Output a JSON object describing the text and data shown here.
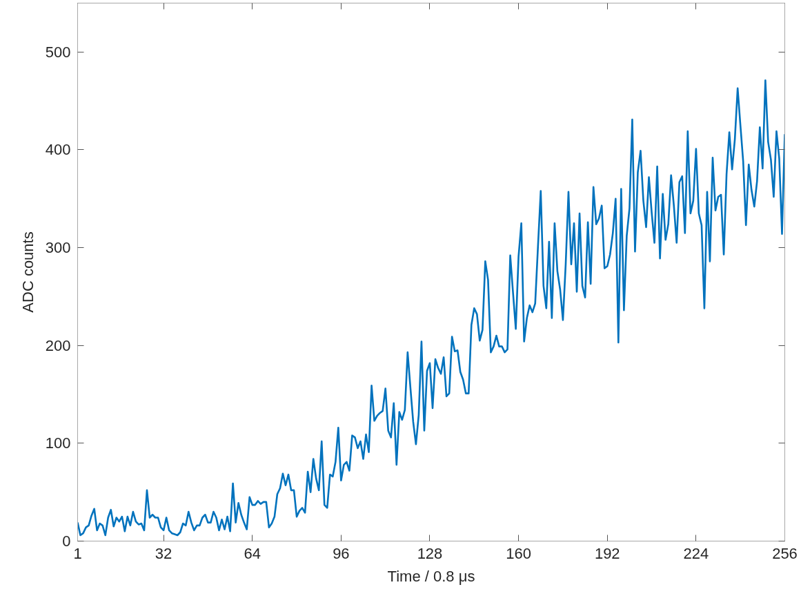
{
  "chart_data": {
    "type": "line",
    "xlabel": "Time / 0.8 μs",
    "ylabel": "ADC counts",
    "color": "#0072bd",
    "line_style": "solid",
    "grid": false,
    "xlim": [
      1,
      256
    ],
    "ylim": [
      0,
      550
    ],
    "xticks": [
      1,
      32,
      64,
      96,
      128,
      160,
      192,
      224,
      256
    ],
    "yticks": [
      0,
      100,
      200,
      300,
      400,
      500
    ],
    "x": [
      1,
      2,
      3,
      4,
      5,
      6,
      7,
      8,
      9,
      10,
      11,
      12,
      13,
      14,
      15,
      16,
      17,
      18,
      19,
      20,
      21,
      22,
      23,
      24,
      25,
      26,
      27,
      28,
      29,
      30,
      31,
      32,
      33,
      34,
      35,
      36,
      37,
      38,
      39,
      40,
      41,
      42,
      43,
      44,
      45,
      46,
      47,
      48,
      49,
      50,
      51,
      52,
      53,
      54,
      55,
      56,
      57,
      58,
      59,
      60,
      61,
      62,
      63,
      64,
      65,
      66,
      67,
      68,
      69,
      70,
      71,
      72,
      73,
      74,
      75,
      76,
      77,
      78,
      79,
      80,
      81,
      82,
      83,
      84,
      85,
      86,
      87,
      88,
      89,
      90,
      91,
      92,
      93,
      94,
      95,
      96,
      97,
      98,
      99,
      100,
      101,
      102,
      103,
      104,
      105,
      106,
      107,
      108,
      109,
      110,
      111,
      112,
      113,
      114,
      115,
      116,
      117,
      118,
      119,
      120,
      121,
      122,
      123,
      124,
      125,
      126,
      127,
      128,
      129,
      130,
      131,
      132,
      133,
      134,
      135,
      136,
      137,
      138,
      139,
      140,
      141,
      142,
      143,
      144,
      145,
      146,
      147,
      148,
      149,
      150,
      151,
      152,
      153,
      154,
      155,
      156,
      157,
      158,
      159,
      160,
      161,
      162,
      163,
      164,
      165,
      166,
      167,
      168,
      169,
      170,
      171,
      172,
      173,
      174,
      175,
      176,
      177,
      178,
      179,
      180,
      181,
      182,
      183,
      184,
      185,
      186,
      187,
      188,
      189,
      190,
      191,
      192,
      193,
      194,
      195,
      196,
      197,
      198,
      199,
      200,
      201,
      202,
      203,
      204,
      205,
      206,
      207,
      208,
      209,
      210,
      211,
      212,
      213,
      214,
      215,
      216,
      217,
      218,
      219,
      220,
      221,
      222,
      223,
      224,
      225,
      226,
      227,
      228,
      229,
      230,
      231,
      232,
      233,
      234,
      235,
      236,
      237,
      238,
      239,
      240,
      241,
      242,
      243,
      244,
      245,
      246,
      247,
      248,
      249,
      250,
      251,
      252,
      253,
      254,
      255,
      256
    ],
    "values": [
      19,
      6,
      8,
      14,
      16,
      26,
      33,
      11,
      18,
      16,
      6,
      24,
      32,
      15,
      24,
      20,
      25,
      10,
      25,
      16,
      30,
      20,
      17,
      18,
      11,
      52,
      24,
      27,
      24,
      24,
      14,
      11,
      24,
      11,
      8,
      7,
      6,
      9,
      18,
      16,
      30,
      19,
      11,
      16,
      16,
      24,
      27,
      19,
      19,
      30,
      24,
      11,
      22,
      12,
      25,
      10,
      59,
      19,
      39,
      27,
      19,
      12,
      45,
      37,
      37,
      41,
      38,
      40,
      40,
      14,
      18,
      25,
      48,
      54,
      69,
      57,
      68,
      52,
      52,
      25,
      31,
      34,
      29,
      71,
      50,
      84,
      64,
      52,
      102,
      37,
      34,
      68,
      66,
      81,
      116,
      62,
      78,
      81,
      72,
      108,
      106,
      95,
      102,
      84,
      109,
      91,
      159,
      123,
      128,
      131,
      133,
      156,
      113,
      106,
      141,
      78,
      132,
      124,
      134,
      193,
      157,
      122,
      99,
      129,
      204,
      113,
      174,
      182,
      136,
      186,
      177,
      171,
      188,
      148,
      151,
      209,
      194,
      195,
      173,
      165,
      151,
      151,
      221,
      238,
      232,
      205,
      216,
      286,
      267,
      193,
      199,
      210,
      199,
      199,
      193,
      196,
      292,
      254,
      217,
      291,
      325,
      204,
      228,
      241,
      234,
      243,
      301,
      358,
      261,
      238,
      306,
      228,
      325,
      276,
      257,
      226,
      283,
      357,
      283,
      325,
      255,
      335,
      261,
      249,
      326,
      263,
      362,
      324,
      330,
      343,
      279,
      281,
      293,
      315,
      350,
      203,
      360,
      236,
      312,
      340,
      431,
      296,
      377,
      399,
      348,
      321,
      372,
      336,
      305,
      383,
      289,
      355,
      308,
      324,
      374,
      343,
      305,
      367,
      373,
      315,
      419,
      335,
      348,
      401,
      335,
      323,
      238,
      357,
      286,
      392,
      338,
      352,
      354,
      293,
      375,
      418,
      380,
      411,
      463,
      425,
      388,
      323,
      385,
      359,
      342,
      368,
      423,
      381,
      471,
      408,
      390,
      352,
      419,
      391,
      314,
      416
    ]
  }
}
